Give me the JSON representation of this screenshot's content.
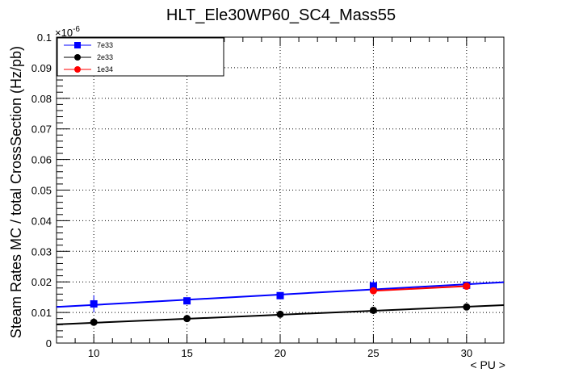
{
  "chart_data": {
    "type": "line",
    "title": "HLT_Ele30WP60_SC4_Mass55",
    "xlabel": "< PU >",
    "ylabel": "Steam Rates MC / total CrossSection (Hz/pb)",
    "y_exponent_label": "×10",
    "y_exponent_power": "-6",
    "xlim": [
      8,
      32
    ],
    "ylim": [
      0,
      0.1
    ],
    "grid": true,
    "legend_position": "top-left",
    "x_ticks": [
      10,
      15,
      20,
      25,
      30
    ],
    "x_tick_labels": [
      "10",
      "15",
      "20",
      "25",
      "30"
    ],
    "y_ticks": [
      0,
      0.01,
      0.02,
      0.03,
      0.04,
      0.05,
      0.06,
      0.07,
      0.08,
      0.09,
      0.1
    ],
    "y_tick_labels": [
      "0",
      "0.01",
      "0.02",
      "0.03",
      "0.04",
      "0.05",
      "0.06",
      "0.07",
      "0.08",
      "0.09",
      "0.1"
    ],
    "series": [
      {
        "name": "7e33",
        "color": "#0000ff",
        "marker": "square",
        "points": [
          {
            "x": 10,
            "y": 0.0128,
            "err": 0.0028
          },
          {
            "x": 15,
            "y": 0.0138,
            "err": 0.0008
          },
          {
            "x": 20,
            "y": 0.0155,
            "err": 0.0008
          },
          {
            "x": 25,
            "y": 0.0187,
            "err": 0.0018
          },
          {
            "x": 30,
            "y": 0.0189,
            "err": 0.001
          }
        ],
        "fit": {
          "x": [
            8,
            32
          ],
          "y": [
            0.0118,
            0.0199
          ]
        }
      },
      {
        "name": "2e33",
        "color": "#000000",
        "marker": "circle",
        "points": [
          {
            "x": 10,
            "y": 0.0068,
            "err": 0.0006
          },
          {
            "x": 15,
            "y": 0.008,
            "err": 0.0005
          },
          {
            "x": 20,
            "y": 0.0094,
            "err": 0.0005
          },
          {
            "x": 25,
            "y": 0.0107,
            "err": 0.0005
          },
          {
            "x": 30,
            "y": 0.0118,
            "err": 0.0005
          }
        ],
        "fit": {
          "x": [
            8,
            32
          ],
          "y": [
            0.0061,
            0.0124
          ]
        }
      },
      {
        "name": "1e34",
        "color": "#ff0000",
        "marker": "circle",
        "points": [
          {
            "x": 25,
            "y": 0.0171,
            "err": 0.0008
          },
          {
            "x": 30,
            "y": 0.0186,
            "err": 0.0008
          }
        ],
        "fit": {
          "x": [
            25,
            30
          ],
          "y": [
            0.0171,
            0.0186
          ]
        }
      }
    ]
  }
}
